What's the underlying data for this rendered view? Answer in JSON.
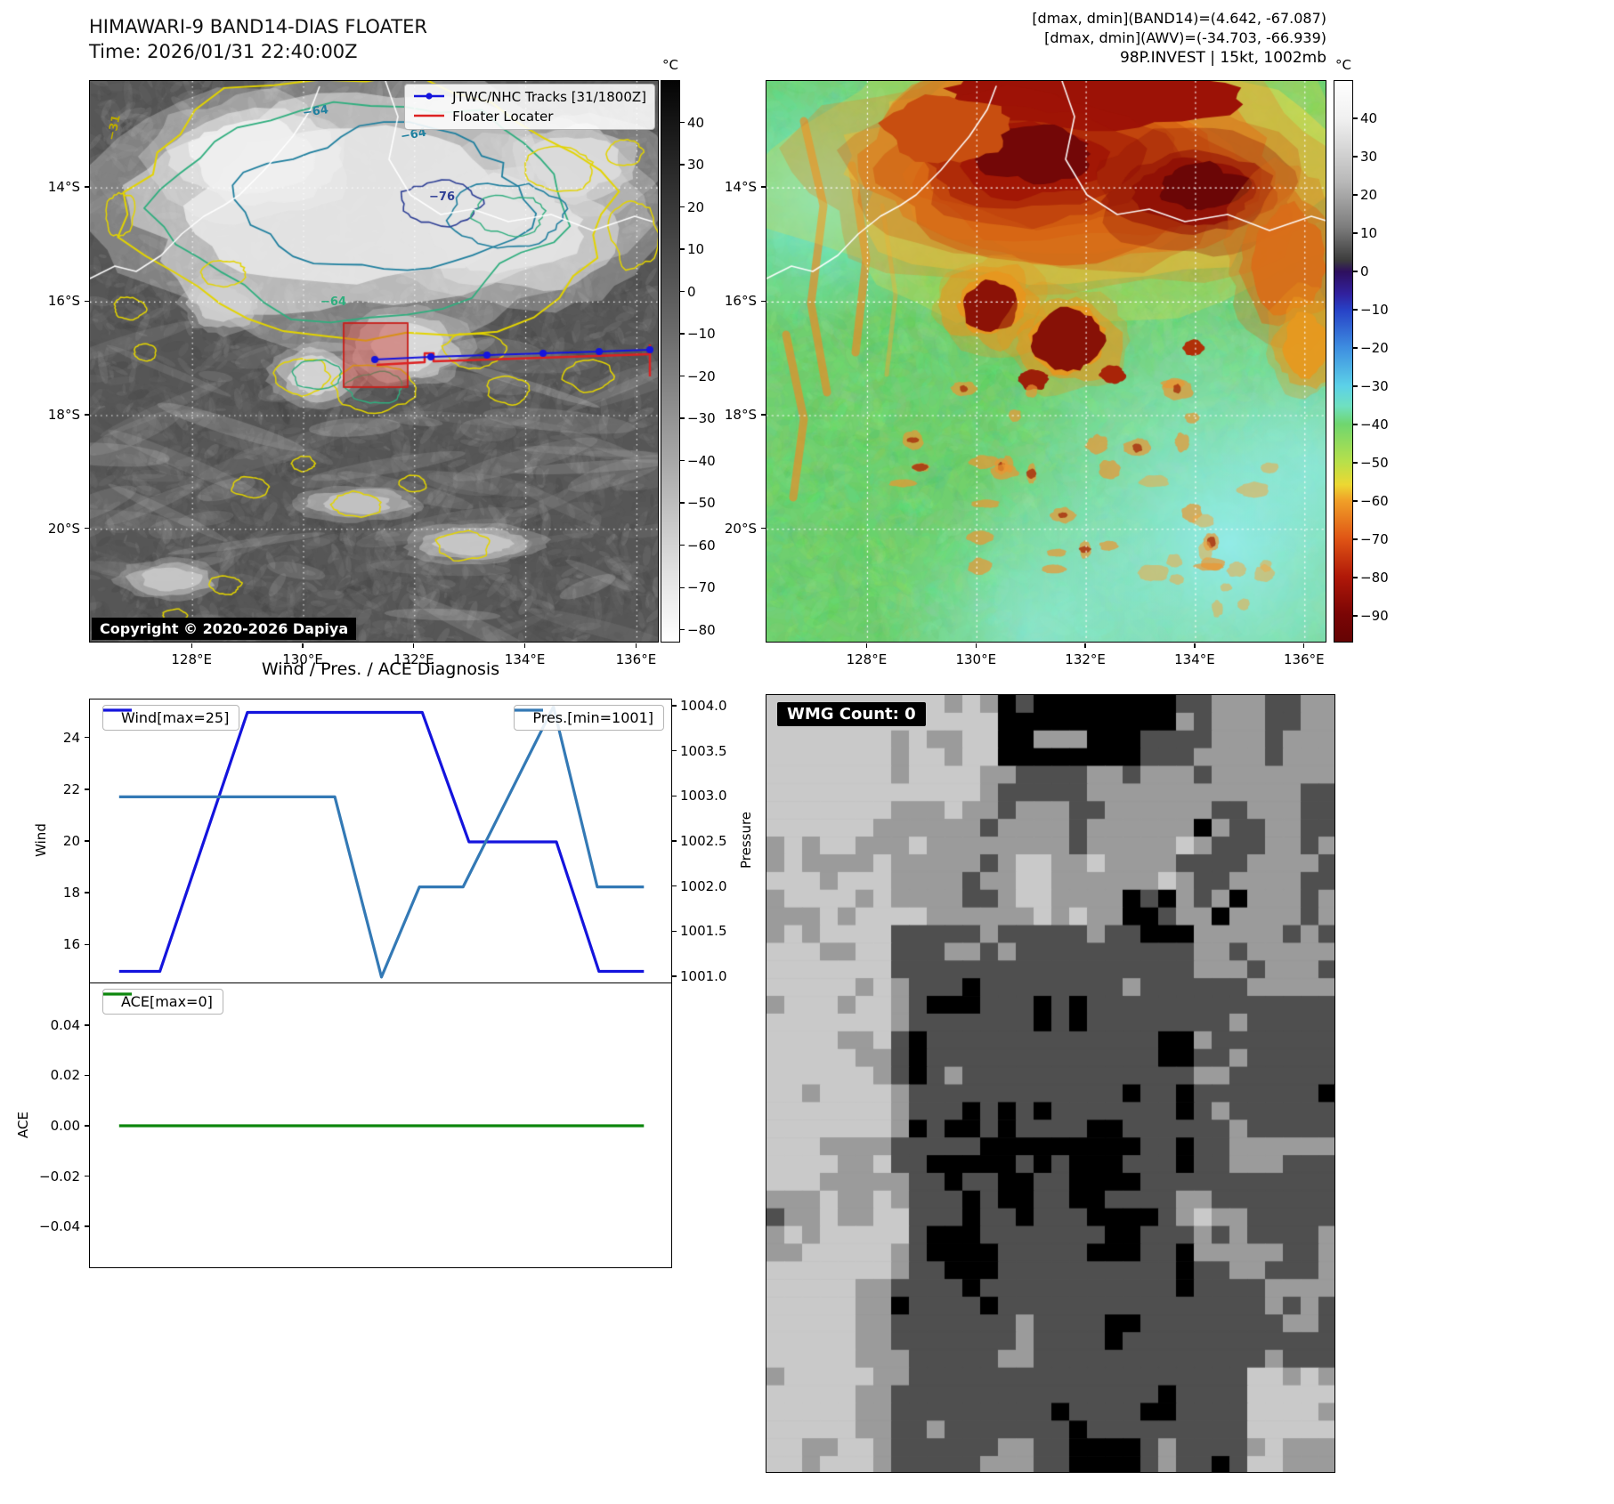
{
  "band14": {
    "title_line1": "HIMAWARI-9 BAND14-DIAS FLOATER",
    "title_line2": "Time: 2026/01/31 22:40:00Z",
    "legend": {
      "tracks": "JTWC/NHC Tracks [31/1800Z]",
      "floater": "Floater Locater",
      "track_color": "#1414dd",
      "floater_color": "#dd2222"
    },
    "copyright": "Copyright © 2020-2026 Dapiya",
    "colorbar_unit": "°C",
    "colorbar_ticks": [
      "40",
      "30",
      "20",
      "10",
      "0",
      "−10",
      "−20",
      "−30",
      "−40",
      "−50",
      "−60",
      "−70",
      "−80"
    ],
    "contour_labels": [
      "−31",
      "−64",
      "−64",
      "−76",
      "−64"
    ],
    "lat_labels": [
      "14°S",
      "16°S",
      "18°S",
      "20°S"
    ],
    "lon_labels": [
      "128°E",
      "130°E",
      "132°E",
      "134°E",
      "136°E"
    ]
  },
  "awv": {
    "header_line1": "[dmax, dmin](BAND14)=(4.642, -67.087)",
    "header_line2": "[dmax, dmin](AWV)=(-34.703, -66.939)",
    "header_line3": "98P.INVEST | 15kt, 1002mb",
    "colorbar_unit": "°C",
    "colorbar_ticks": [
      "40",
      "30",
      "20",
      "10",
      "0",
      "−10",
      "−20",
      "−30",
      "−40",
      "−50",
      "−60",
      "−70",
      "−80",
      "−90"
    ],
    "lat_labels": [
      "14°S",
      "16°S",
      "18°S",
      "20°S"
    ],
    "lon_labels": [
      "128°E",
      "130°E",
      "132°E",
      "134°E",
      "136°E"
    ]
  },
  "diagnosis": {
    "title": "Wind / Pres. / ACE Diagnosis"
  },
  "wmg": {
    "label": "WMG Count: 0"
  },
  "chart_data": [
    {
      "type": "line",
      "title": "Wind / Pres. / ACE Diagnosis",
      "subplot": "wind_pressure",
      "series": [
        {
          "name": "Wind[max=25]",
          "color": "#1414dd",
          "axis": "wind",
          "x": [
            0.05,
            0.12,
            0.27,
            0.57,
            0.65,
            0.8,
            0.873,
            0.95
          ],
          "y": [
            15,
            15,
            25,
            25,
            20,
            20,
            15,
            15
          ]
        },
        {
          "name": "Pres.[min=1001]",
          "color": "#3379b5",
          "axis": "pressure",
          "x": [
            0.05,
            0.42,
            0.5,
            0.565,
            0.64,
            0.795,
            0.87,
            0.95
          ],
          "y": [
            1003,
            1003,
            1001,
            1002,
            1002,
            1004,
            1002,
            1002
          ]
        }
      ],
      "axes": {
        "wind": {
          "label": "Wind",
          "side": "left",
          "range": [
            14.5,
            25.5
          ],
          "tick_values": [
            16,
            18,
            20,
            22,
            24
          ],
          "tick_labels": [
            "16",
            "18",
            "20",
            "22",
            "24"
          ]
        },
        "pressure": {
          "label": "Pressure",
          "side": "right",
          "range": [
            1000.92,
            1004.08
          ],
          "tick_values": [
            1001,
            1001.5,
            1002,
            1002.5,
            1003,
            1003.5,
            1004
          ],
          "tick_labels": [
            "1001.0",
            "1001.5",
            "1002.0",
            "1002.5",
            "1003.0",
            "1003.5",
            "1004.0"
          ]
        }
      },
      "legend_entries": [
        "Wind[max=25]",
        "Pres.[min=1001]"
      ],
      "legend_position": "upper-left / upper-right",
      "grid": false
    },
    {
      "type": "line",
      "subplot": "ace",
      "series": [
        {
          "name": "ACE[max=0]",
          "color": "#0c860c",
          "axis": "ace",
          "x": [
            0.05,
            0.95
          ],
          "y": [
            0,
            0
          ]
        }
      ],
      "axes": {
        "ace": {
          "label": "ACE",
          "side": "left",
          "range": [
            -0.0566,
            0.0566
          ],
          "tick_values": [
            -0.04,
            -0.02,
            0,
            0.02,
            0.04
          ],
          "tick_labels": [
            "−0.04",
            "−0.02",
            "0.00",
            "0.02",
            "0.04"
          ]
        }
      },
      "legend_entries": [
        "ACE[max=0]"
      ],
      "legend_position": "upper-left",
      "grid": false
    }
  ]
}
